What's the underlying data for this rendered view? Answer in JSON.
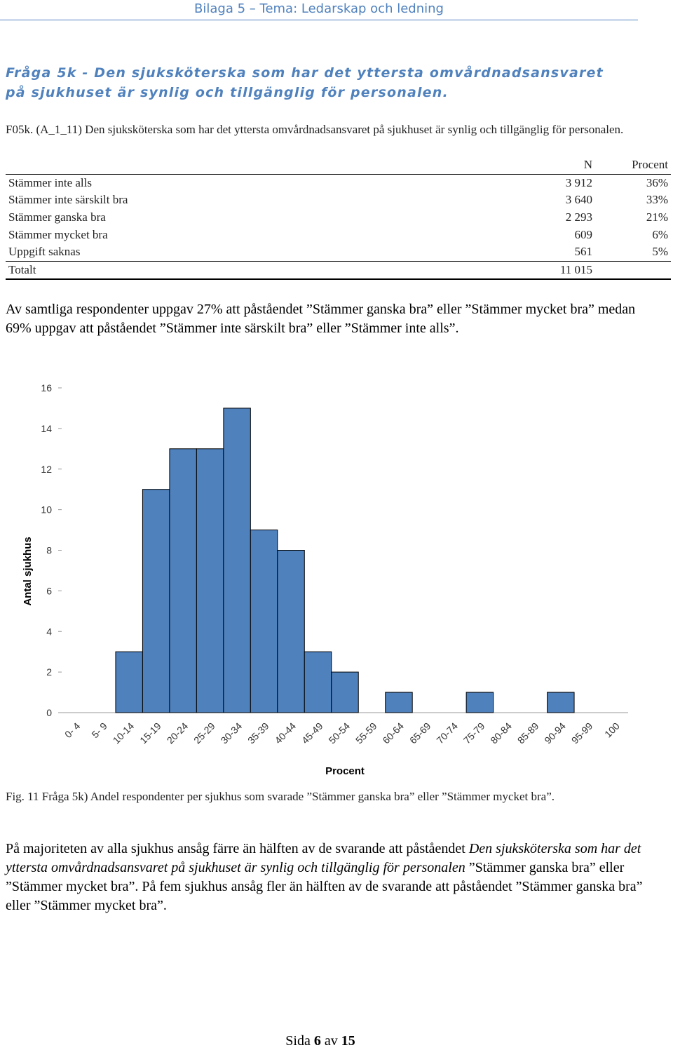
{
  "header": {
    "text": "Bilaga 5 – Tema: Ledarskap och ledning"
  },
  "heading": {
    "line1": "Fråga 5k - Den sjuksköterska som har det yttersta omvårdnadsansvaret",
    "line2": "på sjukhuset är synlig och tillgänglig för personalen."
  },
  "question_code": "F05k. (A_1_11) Den sjuksköterska som har det yttersta omvårdnadsansvaret på sjukhuset är synlig och tillgänglig för personalen.",
  "table": {
    "col_n": "N",
    "col_pct": "Procent",
    "rows": [
      {
        "label": "Stämmer inte alls",
        "n": "3 912",
        "pct": "36%"
      },
      {
        "label": "Stämmer inte särskilt bra",
        "n": "3 640",
        "pct": "33%"
      },
      {
        "label": "Stämmer ganska bra",
        "n": "2 293",
        "pct": "21%"
      },
      {
        "label": "Stämmer mycket bra",
        "n": "609",
        "pct": "6%"
      },
      {
        "label": "Uppgift saknas",
        "n": "561",
        "pct": "5%"
      }
    ],
    "total": {
      "label": "Totalt",
      "n": "11 015",
      "pct": ""
    }
  },
  "paragraph1": "Av samtliga respondenter uppgav 27% att påståendet ”Stämmer ganska bra” eller ”Stämmer mycket bra” medan 69% uppgav att påståendet ”Stämmer inte särskilt bra” eller ”Stämmer inte alls”.",
  "chart_data": {
    "type": "bar",
    "categories": [
      "0- 4",
      "5- 9",
      "10-14",
      "15-19",
      "20-24",
      "25-29",
      "30-34",
      "35-39",
      "40-44",
      "45-49",
      "50-54",
      "55-59",
      "60-64",
      "65-69",
      "70-74",
      "75-79",
      "80-84",
      "85-89",
      "90-94",
      "95-99",
      "100"
    ],
    "values": [
      0,
      0,
      3,
      11,
      13,
      13,
      15,
      9,
      8,
      3,
      2,
      0,
      1,
      0,
      0,
      1,
      0,
      0,
      1,
      0,
      0
    ],
    "xlabel": "Procent",
    "ylabel": "Antal sjukhus",
    "ylim": [
      0,
      16
    ],
    "yticks": [
      0,
      2,
      4,
      6,
      8,
      10,
      12,
      14,
      16
    ],
    "bar_color": "#4f81bd",
    "grid": false
  },
  "caption": "Fig. 11 Fråga 5k) Andel respondenter per sjukhus som svarade ”Stämmer ganska bra” eller ”Stämmer mycket bra”.",
  "paragraph2": {
    "part1": "På majoriteten av alla sjukhus ansåg färre än hälften av de svarande att påståendet ",
    "italic": "Den sjuksköterska som har det yttersta omvårdnadsansvaret på sjukhuset är synlig och tillgänglig för personalen",
    "part2": " ”Stämmer ganska bra” eller ”Stämmer mycket bra”. På fem sjukhus ansåg fler än hälften av de svarande att påståendet ”Stämmer ganska bra” eller ”Stämmer mycket bra”."
  },
  "footer": {
    "prefix": "Sida ",
    "page": "6",
    "mid": " av ",
    "total": "15"
  }
}
